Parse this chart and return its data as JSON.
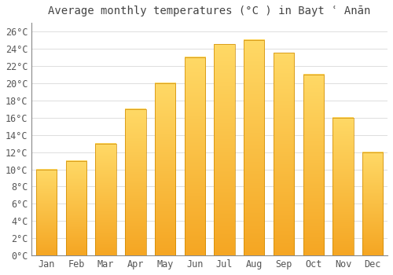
{
  "title": "Average monthly temperatures (°C ) in Bayt ʿ Anān",
  "months": [
    "Jan",
    "Feb",
    "Mar",
    "Apr",
    "May",
    "Jun",
    "Jul",
    "Aug",
    "Sep",
    "Oct",
    "Nov",
    "Dec"
  ],
  "values": [
    10.0,
    11.0,
    13.0,
    17.0,
    20.0,
    23.0,
    24.5,
    25.0,
    23.5,
    21.0,
    16.0,
    12.0
  ],
  "bar_color_bottom": "#F5A623",
  "bar_color_top": "#FFD966",
  "ylim": [
    0,
    27
  ],
  "ytick_step": 2,
  "background_color": "#FFFFFF",
  "grid_color": "#DDDDDD",
  "title_fontsize": 10,
  "tick_fontsize": 8.5
}
